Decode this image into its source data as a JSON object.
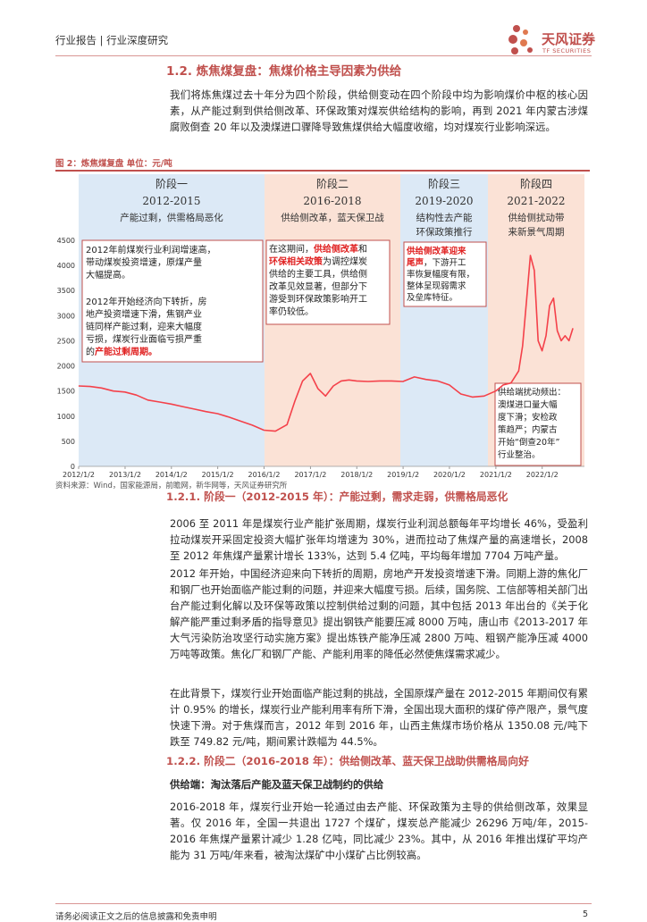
{
  "header": {
    "title": "行业报告 | 行业深度研究"
  },
  "logo": {
    "name_cn": "天风证券",
    "name_en": "TF SECURITIES"
  },
  "section": {
    "heading": "1.2. 炼焦煤复盘：焦煤价格主导因素为供给"
  },
  "intro": "我们将炼焦煤过去十年分为四个阶段，供给侧变动在四个阶段中均为影响煤价中枢的核心因素，从产能过剩到供给侧改革、环保政策对煤炭供给结构的影响，再到 2021 年内蒙古涉煤腐败倒查 20 年以及澳煤进口骤降导致焦煤供给大幅度收缩，均对煤炭行业影响深远。",
  "figure": {
    "title": "图 2：炼焦煤复盘 单位：元/吨",
    "source": "资料来源：Wind，国家能源局，前瞻网，新华网等，天风证券研究所"
  },
  "chart_data": {
    "type": "line",
    "title": "",
    "xlabel": "",
    "ylabel": "",
    "ylim": [
      0,
      4500
    ],
    "y_ticks": [
      "0",
      "500",
      "1000",
      "1500",
      "2000",
      "2500",
      "3000",
      "3500",
      "4000",
      "4500"
    ],
    "x_ticks": [
      "2012/1/2",
      "2013/1/2",
      "2014/1/2",
      "2015/1/2",
      "2016/1/2",
      "2017/1/2",
      "2018/1/2",
      "2019/1/2",
      "2020/1/2",
      "2021/1/2",
      "2022/1/2"
    ],
    "x": [
      "2012-01",
      "2012-04",
      "2012-07",
      "2012-10",
      "2013-01",
      "2013-04",
      "2013-07",
      "2013-10",
      "2014-01",
      "2014-04",
      "2014-07",
      "2014-10",
      "2015-01",
      "2015-04",
      "2015-07",
      "2015-10",
      "2016-01",
      "2016-04",
      "2016-07",
      "2016-09",
      "2016-11",
      "2017-01",
      "2017-03",
      "2017-05",
      "2017-07",
      "2017-09",
      "2017-11",
      "2018-01",
      "2018-04",
      "2018-07",
      "2018-10",
      "2019-01",
      "2019-04",
      "2019-07",
      "2019-10",
      "2020-01",
      "2020-04",
      "2020-07",
      "2020-10",
      "2021-01",
      "2021-03",
      "2021-05",
      "2021-07",
      "2021-08",
      "2021-09",
      "2021-10",
      "2021-11",
      "2021-12",
      "2022-01",
      "2022-02",
      "2022-03",
      "2022-04",
      "2022-05",
      "2022-06",
      "2022-07",
      "2022-08",
      "2022-09"
    ],
    "series": [
      {
        "values": [
          1600,
          1590,
          1560,
          1500,
          1480,
          1420,
          1320,
          1280,
          1240,
          1190,
          1140,
          1090,
          1050,
          980,
          900,
          820,
          720,
          700,
          830,
          1300,
          1700,
          1850,
          1550,
          1400,
          1600,
          1700,
          1720,
          1700,
          1690,
          1700,
          1700,
          1690,
          1780,
          1730,
          1700,
          1620,
          1440,
          1380,
          1400,
          1500,
          1620,
          1660,
          1900,
          2400,
          3300,
          4200,
          3900,
          2500,
          2300,
          2600,
          3200,
          3350,
          2700,
          2500,
          2600,
          2500,
          2750
        ]
      }
    ],
    "stages": [
      {
        "name": "阶段一",
        "years": "2012-2015",
        "desc": "产能过剩，供需格局恶化"
      },
      {
        "name": "阶段二",
        "years": "2016-2018",
        "desc": "供给侧改革，蓝天保卫战"
      },
      {
        "name": "阶段三",
        "years": "2019-2020",
        "desc_line1": "结构性去产能",
        "desc_line2": "环保政策推行"
      },
      {
        "name": "阶段四",
        "years": "2021-2022",
        "desc_line1": "供给侧扰动带",
        "desc_line2": "来新景气周期"
      }
    ],
    "annotations": {
      "a1_lines": [
        "2012年前煤炭行业利润增速高，",
        "带动煤炭投资增速，原煤产量",
        "大幅提高。"
      ],
      "a2_lines": [
        "2012年开始经济向下转折，房",
        "地产投资增速下滑，焦钢产业",
        "链同样产能过剩，迎来大幅度",
        "亏损，煤炭行业面临亏损严重"
      ],
      "a2_last_pre": "的",
      "a2_last_hl": "产能过剩周期。",
      "b_line1_pre": "在这期间，",
      "b_line1_hl": "供给侧改革",
      "b_line1_post": "和",
      "b_line2_hl": "环保相关政策",
      "b_line2_post": "为调控煤炭",
      "b_lines_rest": [
        "供给的主要工具，供给侧",
        "改革见效显著，但部分下",
        "游受到环保政策影响开工",
        "率仍较低。"
      ],
      "c_line1_hl": "供给侧改革迎来",
      "c_line2_hl": "尾声",
      "c_line2_post": "，下游开工",
      "c_lines_rest": [
        "率恢复幅度有限，",
        "整体呈现弱需求",
        "及垒库特征。"
      ],
      "d_lines": [
        "供给端扰动频出：",
        "澳煤进口量大幅",
        "度下滑；安检政",
        "策趋严；内蒙古",
        "开始“倒查20年”",
        "行业整治。"
      ]
    }
  },
  "s121": {
    "heading": "1.2.1. 阶段一（2012-2015 年）：产能过剩，需求走弱，供需格局恶化"
  },
  "p2": "2006 至 2011 年是煤炭行业产能扩张周期，煤炭行业利润总额每年平均增长 46%，受盈利拉动煤炭开采固定投资大幅扩张年均增速为 30%，进而拉动了焦煤产量的高速增长，2008 至 2012 年焦煤产量累计增长 133%，达到 5.4 亿吨，平均每年增加 7704 万吨产量。",
  "p3": "2012 年开始，中国经济迎来向下转折的周期，房地产开发投资增速下滑。同期上游的焦化厂和钢厂也开始面临产能过剩的问题，并迎来大幅度亏损。后续，国务院、工信部等相关部门出台产能过剩化解以及环保等政策以控制供给过剩的问题，其中包括 2013 年出台的《关于化解产能严重过剩矛盾的指导意见》提出钢铁产能要压减 8000 万吨，唐山市《2013-2017 年大气污染防治攻坚行动实施方案》提出炼铁产能净压减 2800 万吨、粗钢产能净压减 4000 万吨等政策。焦化厂和钢厂产能、产能利用率的降低必然使焦煤需求减少。",
  "p4": "在此背景下，煤炭行业开始面临产能过剩的挑战，全国原煤产量在 2012-2015 年期间仅有累计 0.95% 的增长，煤炭行业产能利用率有所下滑，全国出现大面积的煤矿停产限产，景气度快速下滑。对于焦煤而言，2012 年到 2016 年，山西主焦煤市场价格从 1350.08 元/吨下跌至 749.82 元/吨，期间累计跌幅为 44.5%。",
  "s122": {
    "heading": "1.2.2. 阶段二（2016-2018 年）：供给侧改革、蓝天保卫战助供需格局向好"
  },
  "supply_sub": "供给端：淘汰落后产能及蓝天保卫战制约的供给",
  "p5": "2016-2018 年，煤炭行业开始一轮通过由去产能、环保政策为主导的供给侧改革，效果显著。仅 2016 年，全国一共退出 1727 个煤矿，煤炭总产能减少 26296 万吨/年，2015-2016 年焦煤产量累计减少 1.28 亿吨，同比减少 23%。其中，从 2016 年推出煤矿平均产能为 31 万吨/年来看，被淘汰煤矿中小煤矿占比例较高。",
  "footer": {
    "disclaimer": "请务必阅读正文之后的信息披露和免责申明",
    "page": "5"
  },
  "colors": {
    "accent": "#c0504d",
    "line": "#f4414a",
    "stage1_bg": "#dce9f6",
    "stage2_bg": "#fbe2d6",
    "box_border": "#c0504d"
  }
}
